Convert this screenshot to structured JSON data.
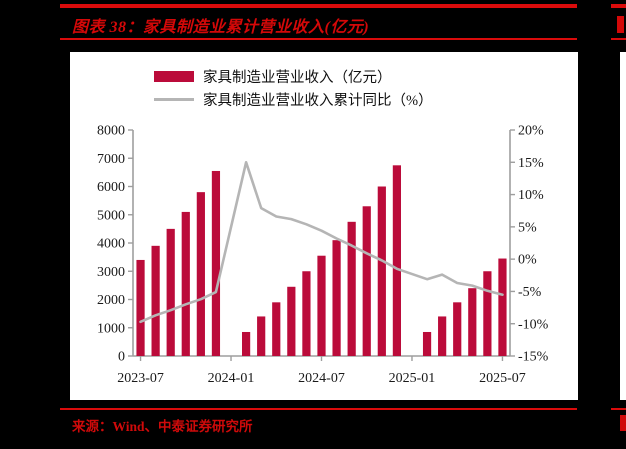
{
  "header": {
    "title": "图表 38：家具制造业累计营业收入(亿元)",
    "accent_color": "#d40808"
  },
  "footer": {
    "source": "来源：Wind、中泰证券研究所"
  },
  "legend": {
    "bar_label": "家具制造业营业收入（亿元）",
    "line_label": "家具制造业营业收入累计同比（%）"
  },
  "chart_data": {
    "type": "bar",
    "subtype": "bar-line-combo",
    "title": "家具制造业累计营业收入(亿元)",
    "categories": [
      "2023-07",
      "2023-08",
      "2023-09",
      "2023-10",
      "2023-11",
      "2023-12",
      "2024-01",
      "2024-02",
      "2024-03",
      "2024-04",
      "2024-05",
      "2024-06",
      "2024-07",
      "2024-08",
      "2024-09",
      "2024-10",
      "2024-11",
      "2024-12",
      "2025-01",
      "2025-02",
      "2025-03",
      "2025-04",
      "2025-05",
      "2025-06",
      "2025-07"
    ],
    "series": [
      {
        "name": "家具制造业营业收入（亿元）",
        "type": "bar",
        "axis": "left",
        "color": "#bb0b3a",
        "values": [
          3400,
          3900,
          4500,
          5100,
          5800,
          6550,
          null,
          850,
          1400,
          1900,
          2450,
          3000,
          3550,
          4100,
          4750,
          5300,
          6000,
          6750,
          null,
          850,
          1400,
          1900,
          2400,
          3000,
          3450
        ]
      },
      {
        "name": "家具制造业营业收入累计同比（%）",
        "type": "line",
        "axis": "right",
        "color": "#b5b5b5",
        "values": [
          -9.7,
          -8.7,
          -7.9,
          -7.0,
          -6.2,
          -5.1,
          null,
          15.0,
          7.9,
          6.6,
          6.2,
          5.4,
          4.4,
          3.2,
          2.1,
          0.9,
          -0.2,
          -1.5,
          null,
          -3.1,
          -2.4,
          -3.7,
          -4.1,
          -4.9,
          -5.5
        ]
      }
    ],
    "left_axis": {
      "min": 0,
      "max": 8000,
      "step": 1000
    },
    "right_axis": {
      "min": -15,
      "max": 20,
      "step": 5,
      "suffix": "%"
    },
    "x_ticks": [
      "2023-07",
      "2024-01",
      "2024-07",
      "2025-01",
      "2025-07"
    ],
    "grid": false,
    "legend_position": "top-center",
    "axis_color": "#9e9e9e"
  }
}
